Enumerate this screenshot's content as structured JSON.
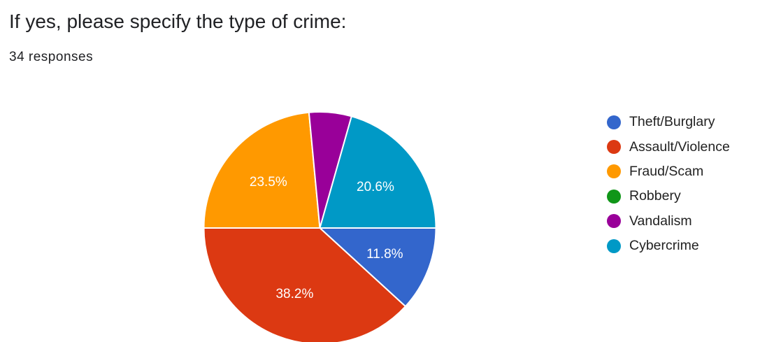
{
  "question": {
    "title": "If yes, please specify the type of crime:",
    "responses": "34 responses"
  },
  "chart_data": {
    "type": "pie",
    "title": "",
    "slices": [
      {
        "name": "Theft/Burglary",
        "value": 11.8,
        "label": "11.8%",
        "color": "#3366cc"
      },
      {
        "name": "Assault/Violence",
        "value": 38.2,
        "label": "38.2%",
        "color": "#dc3912"
      },
      {
        "name": "Fraud/Scam",
        "value": 23.5,
        "label": "23.5%",
        "color": "#ff9900"
      },
      {
        "name": "Robbery",
        "value": 0,
        "label": "",
        "color": "#109618"
      },
      {
        "name": "Vandalism",
        "value": 5.9,
        "label": "",
        "color": "#990099"
      },
      {
        "name": "Cybercrime",
        "value": 20.6,
        "label": "20.6%",
        "color": "#0099c6"
      }
    ],
    "legend_position": "right"
  }
}
